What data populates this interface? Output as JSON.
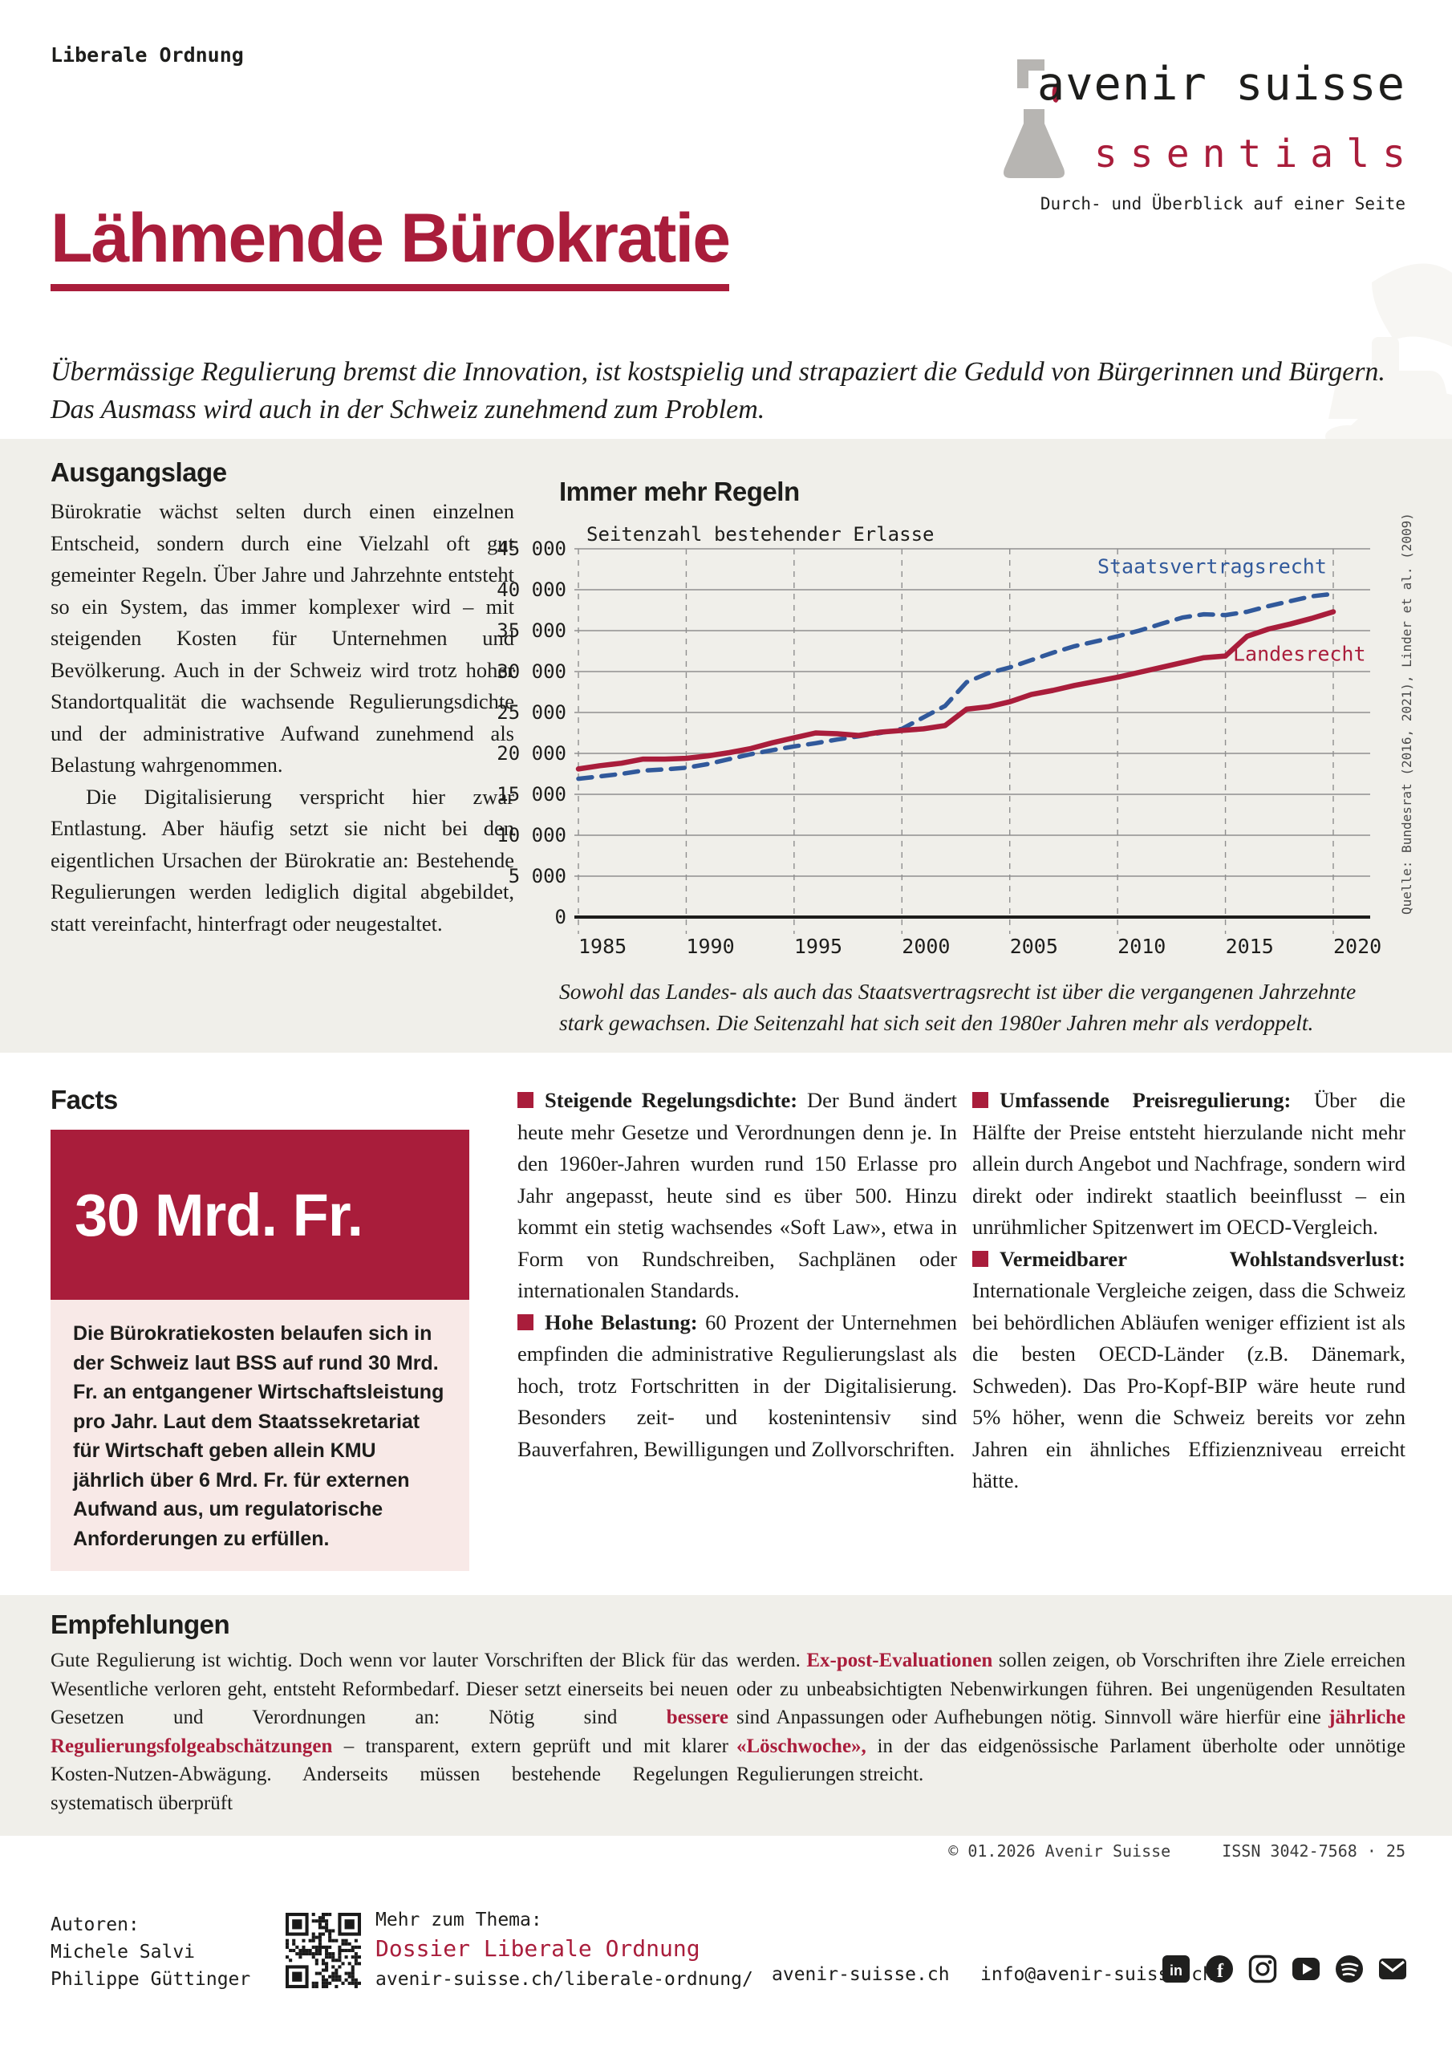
{
  "kicker": "Liberale Ordnung",
  "logo": {
    "brand": "avenir suisse",
    "product_initial": "e",
    "product_rest": "ssentials",
    "tagline": "Durch- und Überblick auf einer Seite"
  },
  "title": "Lähmende Bürokratie",
  "lede": "Übermässige Regulierung bremst die Innovation, ist kostspielig und strapaziert die Geduld von Bürgerinnen und Bürgern. Das Ausmass wird auch in der Schweiz zunehmend zum Problem.",
  "ausgangslage": {
    "heading": "Ausgangslage",
    "p1": "Bürokratie wächst selten durch einen einzelnen Entscheid, sondern durch eine Vielzahl oft gut gemeinter Regeln. Über Jahre und Jahrzehnte entsteht so ein System, das immer komplexer wird – mit steigenden Kosten für Unternehmen und Bevölkerung. Auch in der Schweiz wird trotz hoher Standortqualität die wachsende Regulierungsdichte und der administrative Aufwand zunehmend als Belastung wahrgenommen.",
    "p2": "Die Digitalisierung verspricht hier zwar Entlastung. Aber häufig setzt sie nicht bei den eigentlichen Ursachen der Bürokratie an: Bestehende Regulierungen werden lediglich digital abgebildet, statt vereinfacht, hinterfragt oder neugestaltet."
  },
  "chart": {
    "heading": "Immer mehr Regeln",
    "source": "Quelle: Bundesrat (2016, 2021), Linder et al. (2009)",
    "caption": "Sowohl das Landes- als auch das Staatsvertragsrecht ist über die vergangenen Jahrzehnte stark gewachsen. Die Seitenzahl hat sich seit den 1980er Jahren mehr als verdoppelt."
  },
  "chart_data": {
    "type": "line",
    "title": "Immer mehr Regeln",
    "ylabel": "Seitenzahl bestehender Erlasse",
    "ylim": [
      0,
      45000
    ],
    "ytick_step": 5000,
    "xticks": [
      1985,
      1990,
      1995,
      2000,
      2005,
      2010,
      2015,
      2020
    ],
    "grid": true,
    "legend_position": "inline-labels",
    "series": [
      {
        "name": "Staatsvertragsrecht",
        "color": "#31599b",
        "style": "dashed",
        "points": [
          [
            1985,
            16900
          ],
          [
            1986,
            17200
          ],
          [
            1987,
            17500
          ],
          [
            1988,
            17900
          ],
          [
            1989,
            18050
          ],
          [
            1990,
            18250
          ],
          [
            1991,
            18700
          ],
          [
            1992,
            19300
          ],
          [
            1993,
            19900
          ],
          [
            1994,
            20400
          ],
          [
            1995,
            20850
          ],
          [
            1996,
            21250
          ],
          [
            1997,
            21700
          ],
          [
            1998,
            22100
          ],
          [
            1999,
            22500
          ],
          [
            2000,
            23000
          ],
          [
            2001,
            24400
          ],
          [
            2002,
            25800
          ],
          [
            2003,
            28700
          ],
          [
            2004,
            29800
          ],
          [
            2005,
            30500
          ],
          [
            2006,
            31400
          ],
          [
            2007,
            32300
          ],
          [
            2008,
            33100
          ],
          [
            2009,
            33700
          ],
          [
            2010,
            34300
          ],
          [
            2011,
            35000
          ],
          [
            2012,
            35800
          ],
          [
            2013,
            36600
          ],
          [
            2014,
            37000
          ],
          [
            2015,
            36900
          ],
          [
            2016,
            37300
          ],
          [
            2017,
            38000
          ],
          [
            2018,
            38600
          ],
          [
            2019,
            39200
          ],
          [
            2020,
            39500
          ]
        ]
      },
      {
        "name": "Landesrecht",
        "color": "#a91d3b",
        "style": "solid",
        "points": [
          [
            1985,
            18100
          ],
          [
            1986,
            18500
          ],
          [
            1987,
            18800
          ],
          [
            1988,
            19300
          ],
          [
            1989,
            19300
          ],
          [
            1990,
            19400
          ],
          [
            1991,
            19700
          ],
          [
            1992,
            20100
          ],
          [
            1993,
            20600
          ],
          [
            1994,
            21300
          ],
          [
            1995,
            21900
          ],
          [
            1996,
            22500
          ],
          [
            1997,
            22400
          ],
          [
            1998,
            22200
          ],
          [
            1999,
            22600
          ],
          [
            2000,
            22800
          ],
          [
            2001,
            23000
          ],
          [
            2002,
            23400
          ],
          [
            2003,
            25400
          ],
          [
            2004,
            25700
          ],
          [
            2005,
            26300
          ],
          [
            2006,
            27200
          ],
          [
            2007,
            27700
          ],
          [
            2008,
            28300
          ],
          [
            2009,
            28800
          ],
          [
            2010,
            29300
          ],
          [
            2011,
            29900
          ],
          [
            2012,
            30500
          ],
          [
            2013,
            31100
          ],
          [
            2014,
            31700
          ],
          [
            2015,
            31900
          ],
          [
            2016,
            34300
          ],
          [
            2017,
            35200
          ],
          [
            2018,
            35800
          ],
          [
            2019,
            36500
          ],
          [
            2020,
            37300
          ]
        ]
      }
    ],
    "legend_labels": {
      "staatsvertragsrecht": {
        "text": "Staatsvertragsrecht",
        "x_year": 2019.7,
        "y_value": 42000,
        "anchor": "end"
      },
      "landesrecht": {
        "text": "Landesrecht",
        "x_year": 2015.35,
        "y_value": 31300,
        "anchor": "start"
      }
    }
  },
  "facts": {
    "heading": "Facts",
    "stat_value": "30 Mrd. Fr.",
    "stat_text": "Die Bürokratiekosten belaufen sich in der Schweiz laut BSS auf rund 30 Mrd. Fr. an entgangener Wirtschaftsleistung pro Jahr. Laut dem Staatssekretariat für Wirtschaft geben allein KMU jährlich über 6 Mrd. Fr. für externen Aufwand aus, um regulatorische Anforderungen zu erfüllen.",
    "items": [
      {
        "title": "Steigende Regelungsdichte:",
        "text": "Der Bund ändert heute mehr Gesetze und Verordnungen denn je. In den 1960er-Jahren wurden rund 150 Erlasse pro Jahr angepasst, heute sind es über 500. Hinzu kommt ein stetig wachsendes «Soft Law», etwa in Form von Rundschreiben, Sachplänen oder internationalen Standards."
      },
      {
        "title": "Hohe Belastung:",
        "text": "60 Prozent der Unternehmen empfinden die administrative Regulierungslast als hoch, trotz Fortschritten in der Digitalisierung. Besonders zeit- und kostenintensiv sind Bauverfahren, Bewilligungen und Zollvorschriften."
      },
      {
        "title": "Umfassende Preisregulierung:",
        "text": "Über die Hälfte der Preise entsteht hierzulande nicht mehr allein durch Angebot und Nachfrage, sondern wird direkt oder indirekt staatlich beeinflusst – ein unrühmlicher Spitzenwert im OECD-Vergleich."
      },
      {
        "title": "Vermeidbarer Wohlstandsverlust:",
        "text": "Internationale Vergleiche zeigen, dass die Schweiz bei behördlichen Abläufen weniger effizient ist als die besten OECD-Länder (z.B. Dänemark, Schweden). Das Pro-Kopf-BIP wäre heute rund 5% höher, wenn die Schweiz bereits vor zehn Jahren ein ähnliches Effizienzniveau erreicht hätte."
      }
    ]
  },
  "empfehlungen": {
    "heading": "Empfehlungen",
    "col1": [
      {
        "text": "Gute Regulierung ist wichtig. Doch wenn vor lauter Vorschriften der Blick für das Wesentliche verloren geht, entsteht Reformbedarf. Dieser setzt einerseits bei neuen Gesetzen und Verordnungen an: Nötig sind "
      },
      {
        "text": "bessere Regulierungsfolgeabschätzungen"
      },
      {
        "text": " – transparent, extern geprüft und mit klarer Kosten-Nutzen-Abwägung. Anderseits müssen bestehende Regelungen systematisch überprüft"
      }
    ],
    "col2": [
      {
        "text": "werden. "
      },
      {
        "text": "Ex-post-Evaluationen"
      },
      {
        "text": " sollen zeigen, ob Vorschriften ihre Ziele erreichen oder zu unbeabsichtigten Nebenwirkungen führen. Bei ungenügenden Resultaten sind Anpassungen oder Aufhebungen nötig. Sinnvoll wäre hierfür eine "
      },
      {
        "text": "jährliche «Löschwoche»,"
      },
      {
        "text": " in der das eidgenössische Parlament überholte oder unnötige Regulierungen streicht."
      }
    ]
  },
  "imprint": {
    "copyright": "© 01.2026 Avenir Suisse",
    "issn": "ISSN 3042-7568 · 25"
  },
  "footer": {
    "authors_label": "Autoren:",
    "authors": [
      "Michele Salvi",
      "Philippe Güttinger"
    ],
    "more_label": "Mehr zum Thema:",
    "dossier": "Dossier Liberale Ordnung",
    "dossier_url": "avenir-suisse.ch/liberale-ordnung/",
    "website": "avenir-suisse.ch",
    "email": "info@avenir-suisse.ch",
    "social": [
      "linkedin",
      "facebook",
      "instagram",
      "youtube",
      "spotify",
      "email"
    ]
  },
  "colors": {
    "accent": "#a91d3b",
    "blue": "#31599b",
    "band": "#f0efea",
    "pink": "#f8e9e7",
    "grid": "#8f8f8f",
    "axis": "#1d1d1b"
  }
}
